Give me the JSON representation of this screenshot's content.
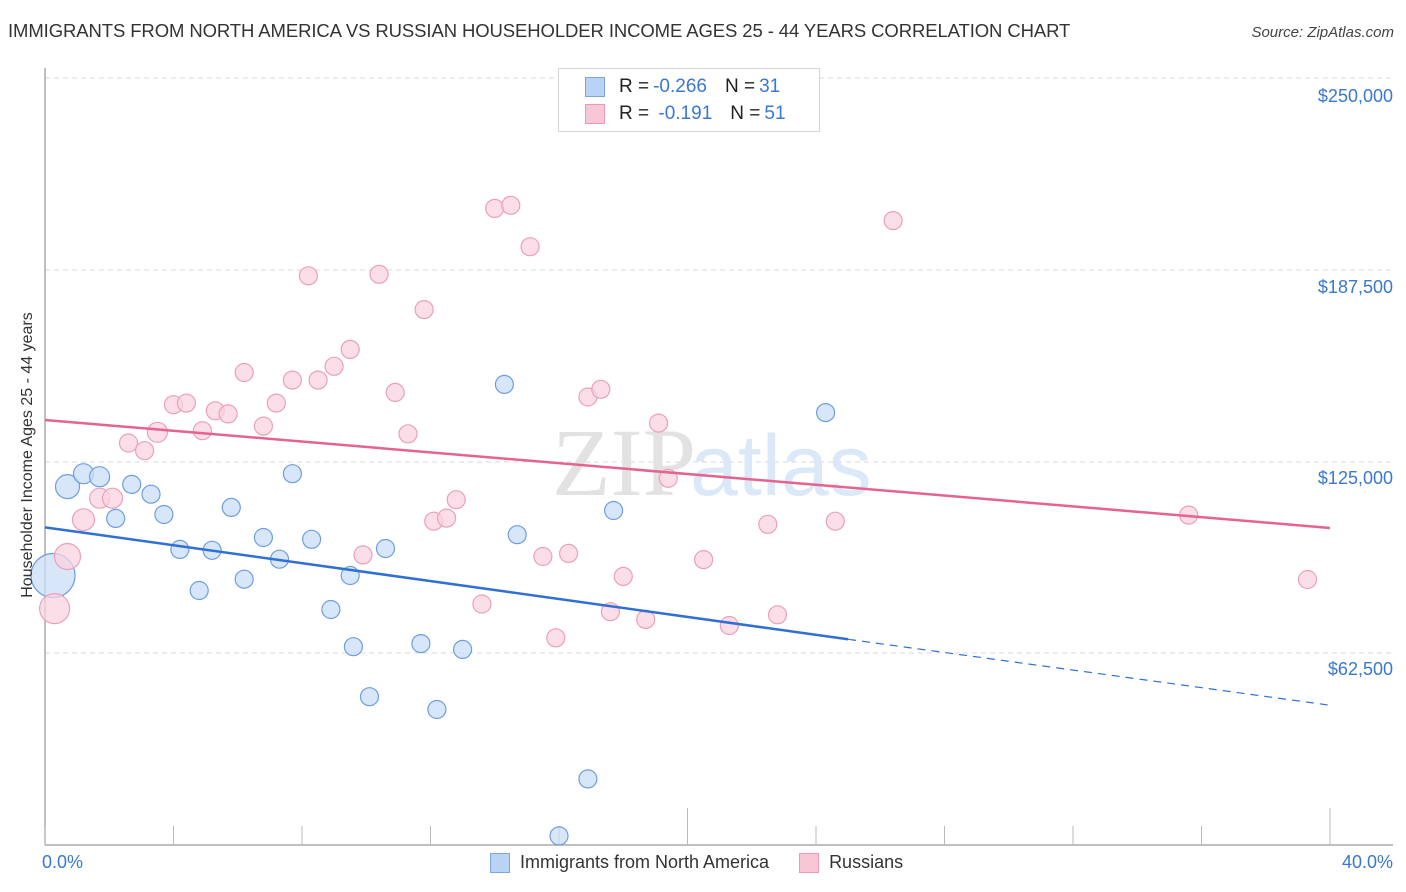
{
  "header": {
    "title": "IMMIGRANTS FROM NORTH AMERICA VS RUSSIAN HOUSEHOLDER INCOME AGES 25 - 44 YEARS CORRELATION CHART",
    "source": "Source: ZipAtlas.com"
  },
  "legend": {
    "rows": [
      {
        "r_label": "R = ",
        "r_value": "-0.266",
        "n_label": "N = ",
        "n_value": "31",
        "color": "#b8d3f5",
        "border": "#7aa6e0"
      },
      {
        "r_label": "R = ",
        "r_value": " -0.191",
        "n_label": "N = ",
        "n_value": "51",
        "color": "#f9c6d6",
        "border": "#ec9ab4"
      }
    ]
  },
  "axes": {
    "y_label": "Householder Income Ages 25 - 44 years",
    "y_ticks": [
      "$250,000",
      "$187,500",
      "$125,000",
      "$62,500"
    ],
    "x_min_label": "0.0%",
    "x_max_label": "40.0%"
  },
  "bottom_legend": {
    "items": [
      {
        "label": "Immigrants from North America",
        "color": "#b8d3f5",
        "border": "#7aa6e0"
      },
      {
        "label": "Russians",
        "color": "#f9c6d6",
        "border": "#ec9ab4"
      }
    ]
  },
  "watermark": {
    "zip": "ZIP",
    "atlas": "atlas"
  },
  "colors": {
    "blue_fill": "#c9ddf6",
    "blue_stroke": "#6e9ee0",
    "blue_line": "#2f6fd6",
    "pink_fill": "#fad3e0",
    "pink_stroke": "#eba0ba",
    "pink_line": "#e5638d",
    "tick_text": "#3a78d0"
  },
  "chart_data": {
    "type": "scatter",
    "title": "IMMIGRANTS FROM NORTH AMERICA VS RUSSIAN HOUSEHOLDER INCOME AGES 25 - 44 YEARS CORRELATION CHART",
    "xlabel": "",
    "ylabel": "Householder Income Ages 25 - 44 years",
    "xlim": [
      0,
      40
    ],
    "ylim": [
      0,
      265000
    ],
    "x_ticks": [
      "0.0%",
      "40.0%"
    ],
    "y_ticks": [
      62500,
      125000,
      187500,
      250000
    ],
    "grid": true,
    "legend_position": "top-center and bottom",
    "series": [
      {
        "name": "Immigrants from North America",
        "R": -0.266,
        "N": 31,
        "trend": {
          "x0": 0,
          "y0": 103500,
          "x1": 25,
          "y1": 67000,
          "dashed_to_x": 40,
          "dashed_to_y": 45500
        },
        "points": [
          {
            "x": 0.25,
            "y": 87800,
            "size": 22
          },
          {
            "x": 0.7,
            "y": 116800,
            "size": 12
          },
          {
            "x": 1.2,
            "y": 121000,
            "size": 10
          },
          {
            "x": 1.7,
            "y": 120000,
            "size": 10
          },
          {
            "x": 2.2,
            "y": 106400,
            "size": 9
          },
          {
            "x": 2.7,
            "y": 117500,
            "size": 9
          },
          {
            "x": 3.3,
            "y": 114300,
            "size": 9
          },
          {
            "x": 3.7,
            "y": 107700,
            "size": 9
          },
          {
            "x": 4.2,
            "y": 96300,
            "size": 9
          },
          {
            "x": 4.8,
            "y": 82900,
            "size": 9
          },
          {
            "x": 5.2,
            "y": 96000,
            "size": 9
          },
          {
            "x": 5.8,
            "y": 110000,
            "size": 9
          },
          {
            "x": 6.2,
            "y": 86600,
            "size": 9
          },
          {
            "x": 6.8,
            "y": 100200,
            "size": 9
          },
          {
            "x": 7.3,
            "y": 93100,
            "size": 9
          },
          {
            "x": 7.7,
            "y": 121000,
            "size": 9
          },
          {
            "x": 8.3,
            "y": 99600,
            "size": 9
          },
          {
            "x": 8.9,
            "y": 76700,
            "size": 9
          },
          {
            "x": 9.5,
            "y": 87800,
            "size": 9
          },
          {
            "x": 9.6,
            "y": 64600,
            "size": 9
          },
          {
            "x": 10.1,
            "y": 48300,
            "size": 9
          },
          {
            "x": 10.6,
            "y": 96600,
            "size": 9
          },
          {
            "x": 11.7,
            "y": 65600,
            "size": 9
          },
          {
            "x": 12.2,
            "y": 44100,
            "size": 9
          },
          {
            "x": 13.0,
            "y": 63700,
            "size": 9
          },
          {
            "x": 14.3,
            "y": 150100,
            "size": 9
          },
          {
            "x": 14.7,
            "y": 101100,
            "size": 9
          },
          {
            "x": 16.0,
            "y": 2900,
            "size": 9
          },
          {
            "x": 16.9,
            "y": 21500,
            "size": 9
          },
          {
            "x": 17.7,
            "y": 109000,
            "size": 9
          },
          {
            "x": 24.3,
            "y": 140900,
            "size": 9
          }
        ]
      },
      {
        "name": "Russians",
        "R": -0.191,
        "N": 51,
        "trend": {
          "x0": 0,
          "y0": 138500,
          "x1": 40,
          "y1": 103300
        },
        "points": [
          {
            "x": 0.3,
            "y": 77000,
            "size": 15
          },
          {
            "x": 0.7,
            "y": 94000,
            "size": 13
          },
          {
            "x": 1.2,
            "y": 106000,
            "size": 11
          },
          {
            "x": 1.7,
            "y": 113000,
            "size": 10
          },
          {
            "x": 2.1,
            "y": 113000,
            "size": 10
          },
          {
            "x": 2.6,
            "y": 131000,
            "size": 9
          },
          {
            "x": 3.1,
            "y": 128500,
            "size": 9
          },
          {
            "x": 3.5,
            "y": 134500,
            "size": 10
          },
          {
            "x": 4.0,
            "y": 143500,
            "size": 9
          },
          {
            "x": 4.4,
            "y": 144000,
            "size": 9
          },
          {
            "x": 4.9,
            "y": 135000,
            "size": 9
          },
          {
            "x": 5.3,
            "y": 141500,
            "size": 9
          },
          {
            "x": 5.7,
            "y": 140500,
            "size": 9
          },
          {
            "x": 6.2,
            "y": 154000,
            "size": 9
          },
          {
            "x": 6.8,
            "y": 136500,
            "size": 9
          },
          {
            "x": 7.2,
            "y": 144000,
            "size": 9
          },
          {
            "x": 7.7,
            "y": 151500,
            "size": 9
          },
          {
            "x": 8.2,
            "y": 185500,
            "size": 9
          },
          {
            "x": 8.5,
            "y": 151500,
            "size": 9
          },
          {
            "x": 9.0,
            "y": 156000,
            "size": 9
          },
          {
            "x": 9.5,
            "y": 161500,
            "size": 9
          },
          {
            "x": 9.9,
            "y": 94500,
            "size": 9
          },
          {
            "x": 10.4,
            "y": 186000,
            "size": 9
          },
          {
            "x": 10.9,
            "y": 147500,
            "size": 9
          },
          {
            "x": 11.3,
            "y": 134000,
            "size": 9
          },
          {
            "x": 11.8,
            "y": 174500,
            "size": 9
          },
          {
            "x": 12.1,
            "y": 105500,
            "size": 9
          },
          {
            "x": 12.5,
            "y": 106500,
            "size": 9
          },
          {
            "x": 12.8,
            "y": 112500,
            "size": 9
          },
          {
            "x": 13.6,
            "y": 78500,
            "size": 9
          },
          {
            "x": 14.0,
            "y": 207500,
            "size": 9
          },
          {
            "x": 14.5,
            "y": 208500,
            "size": 9
          },
          {
            "x": 15.1,
            "y": 195000,
            "size": 9
          },
          {
            "x": 15.5,
            "y": 94000,
            "size": 9
          },
          {
            "x": 15.9,
            "y": 67500,
            "size": 9
          },
          {
            "x": 16.3,
            "y": 95000,
            "size": 9
          },
          {
            "x": 16.9,
            "y": 146000,
            "size": 9
          },
          {
            "x": 17.3,
            "y": 148500,
            "size": 9
          },
          {
            "x": 17.6,
            "y": 76000,
            "size": 9
          },
          {
            "x": 18.0,
            "y": 87500,
            "size": 9
          },
          {
            "x": 18.7,
            "y": 73500,
            "size": 9
          },
          {
            "x": 19.1,
            "y": 137500,
            "size": 9
          },
          {
            "x": 19.4,
            "y": 119500,
            "size": 9
          },
          {
            "x": 20.5,
            "y": 93000,
            "size": 9
          },
          {
            "x": 21.3,
            "y": 71500,
            "size": 9
          },
          {
            "x": 22.5,
            "y": 104500,
            "size": 9
          },
          {
            "x": 22.8,
            "y": 75000,
            "size": 9
          },
          {
            "x": 24.6,
            "y": 105500,
            "size": 9
          },
          {
            "x": 26.4,
            "y": 203500,
            "size": 9
          },
          {
            "x": 35.6,
            "y": 107500,
            "size": 9
          },
          {
            "x": 39.3,
            "y": 86500,
            "size": 9
          }
        ]
      }
    ]
  }
}
